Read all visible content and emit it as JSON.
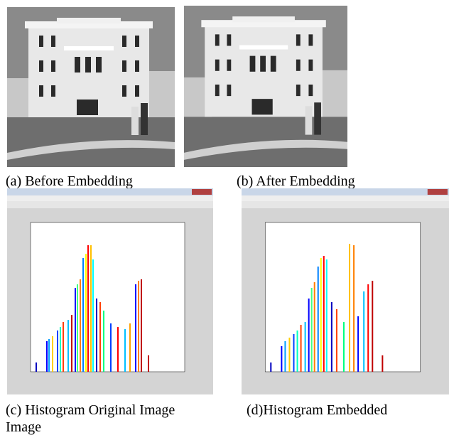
{
  "figure": {
    "captions": [
      "(a) Before Embedding",
      "(b) After Embedding",
      "(c) Histogram Original Image",
      "(d)Histogram Embedded",
      "Image"
    ]
  }
}
